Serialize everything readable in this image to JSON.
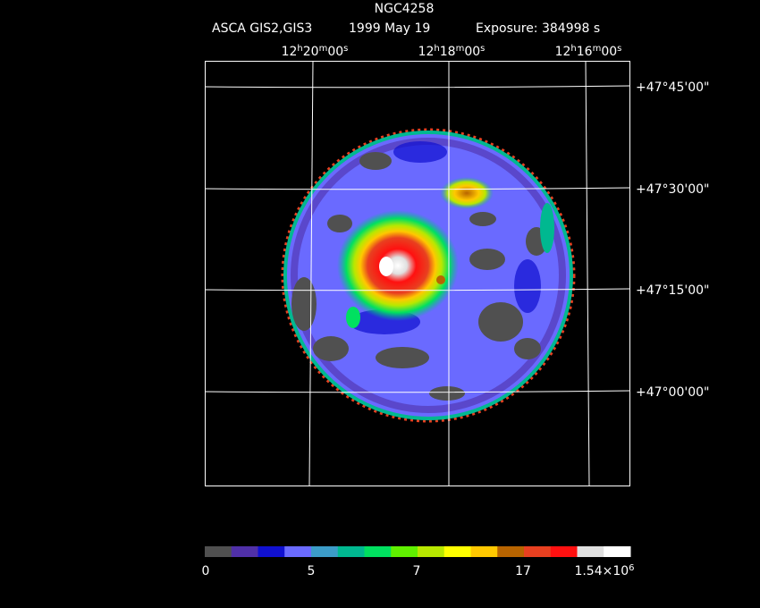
{
  "header": {
    "title": "NGC4258",
    "instrument": "ASCA GIS2,GIS3",
    "date": "1999 May 19",
    "exposure": "Exposure: 384998 s"
  },
  "ra_labels": [
    [
      "12",
      "h",
      "20",
      "m",
      "00",
      "s"
    ],
    [
      "12",
      "h",
      "18",
      "m",
      "00",
      "s"
    ],
    [
      "12",
      "h",
      "16",
      "m",
      "00",
      "s"
    ]
  ],
  "dec_labels": [
    "+47°45'00\"",
    "+47°30'00\"",
    "+47°15'00\"",
    "+47°00'00\""
  ],
  "colorbar": {
    "colors": [
      "#505050",
      "#5030a8",
      "#1010d0",
      "#6a6aff",
      "#3c9cc8",
      "#00b890",
      "#00e060",
      "#60f000",
      "#b8e800",
      "#ffff00",
      "#ffc800",
      "#b86400",
      "#e84020",
      "#ff1010",
      "#e0e0e0",
      "#ffffff"
    ],
    "labels": [
      [
        "0"
      ],
      [
        "5"
      ],
      [
        "7"
      ],
      [
        "17"
      ],
      [
        "1.54×10",
        "6"
      ]
    ]
  }
}
